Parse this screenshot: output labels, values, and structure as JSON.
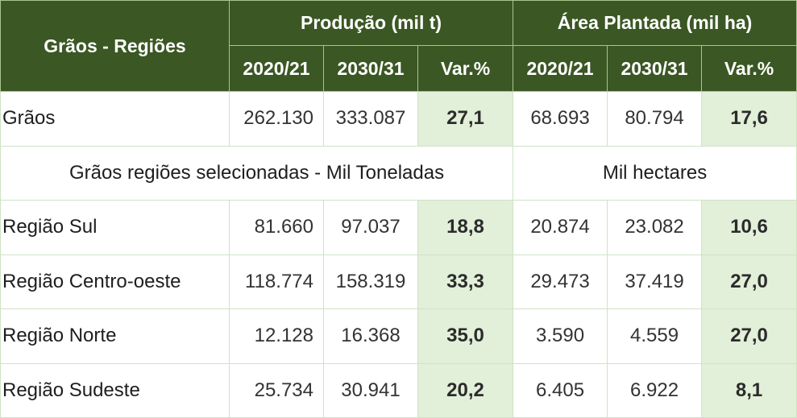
{
  "table": {
    "header": {
      "row_label": "Grãos - Regiões",
      "groups": [
        {
          "label": "Produção (mil t)"
        },
        {
          "label": "Área Plantada (mil ha)"
        }
      ],
      "subcolumns": [
        "2020/21",
        "2030/31",
        "Var.%",
        "2020/21",
        "2030/31",
        "Var.%"
      ]
    },
    "total_row": {
      "label": "Grãos",
      "values": [
        "262.130",
        "333.087",
        "27,1",
        "68.693",
        "80.794",
        "17,6"
      ]
    },
    "section_row": {
      "left": "Grãos regiões selecionadas - Mil Toneladas",
      "right": "Mil hectares"
    },
    "rows": [
      {
        "label": "Região Sul",
        "values": [
          "81.660",
          "97.037",
          "18,8",
          "20.874",
          "23.082",
          "10,6"
        ]
      },
      {
        "label": "Região Centro-oeste",
        "values": [
          "118.774",
          "158.319",
          "33,3",
          "29.473",
          "37.419",
          "27,0"
        ]
      },
      {
        "label": "Região Norte",
        "values": [
          "12.128",
          "16.368",
          "35,0",
          "3.590",
          "4.559",
          "27,0"
        ]
      },
      {
        "label": "Região Sudeste",
        "values": [
          "25.734",
          "30.941",
          "20,2",
          "6.405",
          "6.922",
          "8,1"
        ]
      }
    ]
  },
  "colors": {
    "header_bg": "#3b5724",
    "header_text": "#ffffff",
    "var_cell_bg": "#e2efd9",
    "grid_line": "#cfe3c4"
  }
}
